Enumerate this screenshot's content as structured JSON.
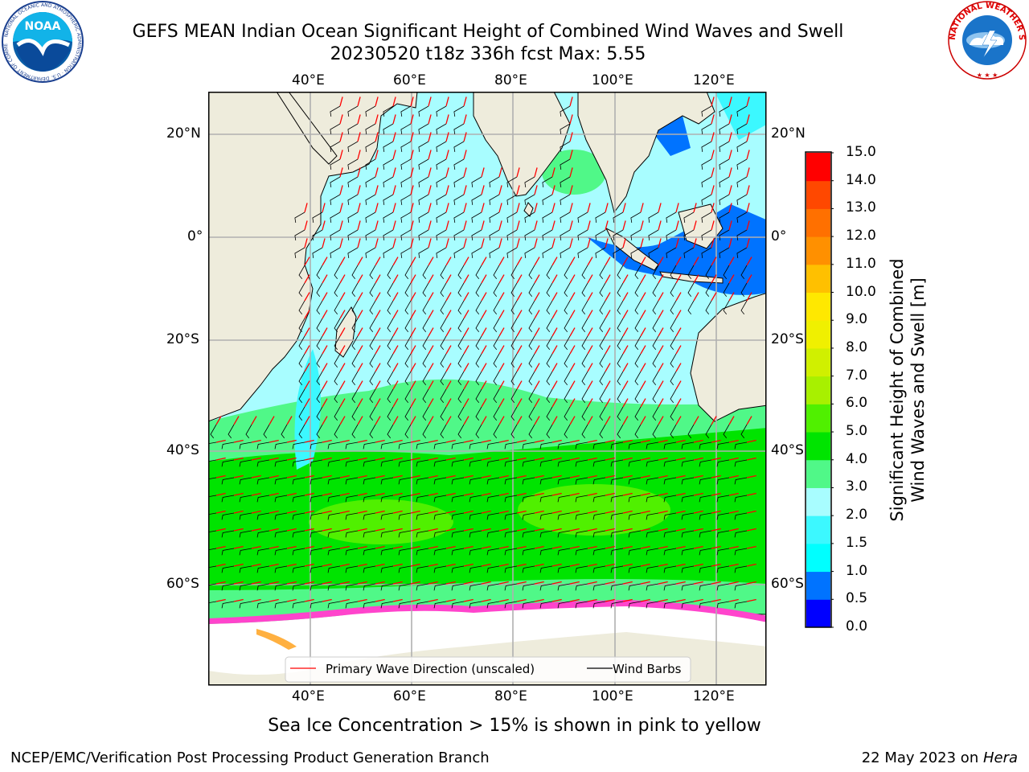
{
  "header": {
    "title_line1": "GEFS MEAN Indian Ocean Significant Height of Combined Wind Waves and Swell",
    "title_line2": "20230520 t18z 336h fcst   Max: 5.55"
  },
  "logos": {
    "noaa_text": "NOAA",
    "noaa_ring_text": "NATIONAL OCEANIC AND ATMOSPHERIC ADMINISTRATION · U.S. DEPARTMENT OF COMMERCE",
    "nws_ring_text": "NATIONAL WEATHER SERVICE"
  },
  "map": {
    "lon_labels": [
      "40°E",
      "60°E",
      "80°E",
      "100°E",
      "120°E"
    ],
    "lat_labels": [
      "20°N",
      "0°",
      "20°S",
      "40°S",
      "60°S"
    ],
    "legend": {
      "wave_label": "Primary Wave Direction (unscaled)",
      "wind_label": "Wind Barbs"
    },
    "colors": {
      "land": "#eeecdc",
      "ice_shelf": "#ffffff",
      "wave_arrow": "#ff0000",
      "wind_barb": "#000000"
    }
  },
  "colorbar": {
    "title_line1": "Significant Height of Combined",
    "title_line2": "Wind Waves and Swell [m]",
    "ticks": [
      "0.0",
      "0.5",
      "1.0",
      "1.5",
      "2.0",
      "3.0",
      "4.0",
      "5.0",
      "6.0",
      "7.0",
      "8.0",
      "9.0",
      "10.0",
      "11.0",
      "12.0",
      "13.0",
      "14.0",
      "15.0"
    ],
    "colors": [
      "#0000ff",
      "#0073ff",
      "#00ffff",
      "#3cf8ff",
      "#a8fdff",
      "#50f888",
      "#00e400",
      "#50f000",
      "#a8f000",
      "#d0f000",
      "#f0f000",
      "#ffe800",
      "#ffc000",
      "#ff9000",
      "#ff7000",
      "#ff4800",
      "#ff0000"
    ]
  },
  "note": "Sea Ice Concentration > 15% is shown in pink to yellow",
  "footer": {
    "left": "NCEP/EMC/Verification Post Processing Product Generation Branch",
    "right_prefix": "22 May 2023 on ",
    "right_machine": "Hera"
  }
}
